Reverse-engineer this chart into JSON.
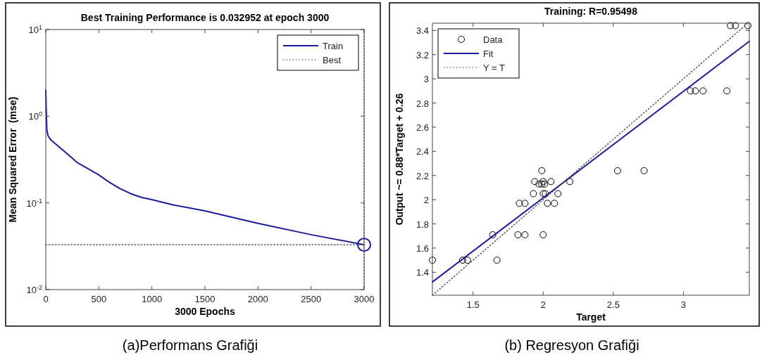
{
  "chart_data": [
    {
      "type": "line",
      "title": "Best Training Performance is 0.032952 at epoch 3000",
      "xlabel": "3000 Epochs",
      "ylabel": "Mean Squared Error  (mse)",
      "log": "y",
      "xlim": [
        0,
        3000
      ],
      "xticks": [
        0,
        500,
        1000,
        1500,
        2000,
        2500,
        3000
      ],
      "ylim": [
        0.01,
        10
      ],
      "yticks": [
        {
          "value": 0.01,
          "label": "10$^{-2}$"
        },
        {
          "value": 0.1,
          "label": "10$^{-1}$"
        },
        {
          "value": 1,
          "label": "10$^{0}$"
        },
        {
          "value": 10,
          "label": "10$^{1}$"
        }
      ],
      "grid": false,
      "legend": "top right",
      "series": [
        {
          "name": "Train",
          "color": "#1c1c9e",
          "line_style": "solid",
          "x": [
            0,
            5,
            10,
            20,
            50,
            100,
            200,
            300,
            400,
            500,
            600,
            700,
            800,
            900,
            1000,
            1200,
            1500,
            2000,
            2500,
            3000
          ],
          "values": [
            2.0,
            1.1,
            0.7,
            0.6,
            0.53,
            0.47,
            0.37,
            0.29,
            0.248,
            0.21,
            0.173,
            0.146,
            0.128,
            0.116,
            0.109,
            0.095,
            0.081,
            0.058,
            0.043,
            0.032952
          ]
        },
        {
          "name": "Best",
          "color": "#333333",
          "line_style": "dotted",
          "x": [
            0,
            3000
          ],
          "values": [
            0.032952,
            0.032952
          ]
        },
        {
          "type": "scatter",
          "color": "#1c1c9e",
          "marker": "circle",
          "x": [
            3000
          ],
          "values": [
            0.032952
          ]
        }
      ],
      "ref_lines": [
        {
          "axis": "x",
          "value": 3000,
          "color": "#333333",
          "line_style": "dotted"
        }
      ],
      "annotations": [
        "(a)Performans Grafiği"
      ]
    },
    {
      "type": "scatter",
      "title": "Training: R=0.95498",
      "xlabel": "Target",
      "ylabel": "Output ~= 0.88*Target + 0.26",
      "xlim": [
        1.21,
        3.47
      ],
      "xticks": [
        1.5,
        2,
        2.5,
        3
      ],
      "ylim": [
        1.21,
        3.46
      ],
      "yticks": [
        1.4,
        1.6,
        1.8,
        2,
        2.2,
        2.4,
        2.6,
        2.8,
        3,
        3.2,
        3.4
      ],
      "grid": false,
      "legend": "top left",
      "series": [
        {
          "name": "Data",
          "color": "#000000",
          "marker": "circle",
          "x": [
            1.21,
            1.425,
            1.46,
            1.67,
            1.64,
            1.82,
            1.87,
            2.0,
            1.83,
            1.87,
            2.03,
            2.08,
            1.93,
            2.0,
            2.015,
            2.105,
            1.94,
            2.0,
            2.055,
            2.19,
            1.97,
            1.99,
            2.01,
            1.99,
            2.53,
            2.72,
            3.05,
            3.085,
            3.14,
            3.31,
            3.335,
            3.37,
            3.46
          ],
          "values": [
            1.5,
            1.5,
            1.5,
            1.5,
            1.71,
            1.71,
            1.71,
            1.71,
            1.97,
            1.97,
            1.97,
            1.97,
            2.05,
            2.05,
            2.05,
            2.05,
            2.15,
            2.15,
            2.15,
            2.15,
            2.13,
            2.13,
            2.13,
            2.24,
            2.24,
            2.24,
            2.9,
            2.9,
            2.9,
            2.9,
            3.44,
            3.44,
            3.44
          ]
        },
        {
          "name": "Fit",
          "type": "line",
          "color": "#1c1c9e",
          "line_style": "solid",
          "x": [
            1.21,
            3.47
          ],
          "values": [
            1.32,
            3.31
          ]
        },
        {
          "name": "Y = T",
          "type": "line",
          "color": "#333333",
          "line_style": "dotted",
          "x": [
            1.21,
            3.46
          ],
          "values": [
            1.21,
            3.46
          ]
        }
      ],
      "annotations": [
        "(b) Regresyon Grafiği"
      ]
    }
  ]
}
